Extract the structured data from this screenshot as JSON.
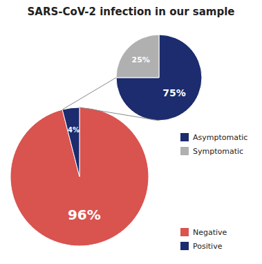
{
  "chart_data": [
    {
      "type": "pie",
      "title": "SARS-CoV-2 infection in our sample",
      "categories": [
        "Negative",
        "Positive"
      ],
      "values": [
        96,
        4
      ],
      "value_labels": [
        "96%",
        "4%"
      ],
      "colors": [
        "#D9534F",
        "#1C2C6E"
      ],
      "data_labels": true,
      "legend": "lower right"
    },
    {
      "type": "pie",
      "categories": [
        "Asymptomatic",
        "Symptomatic"
      ],
      "values": [
        75,
        25
      ],
      "value_labels": [
        "75%",
        "25%"
      ],
      "colors": [
        "#1C2C6E",
        "#B0B0B0"
      ],
      "data_labels": true,
      "legend": "right"
    }
  ]
}
